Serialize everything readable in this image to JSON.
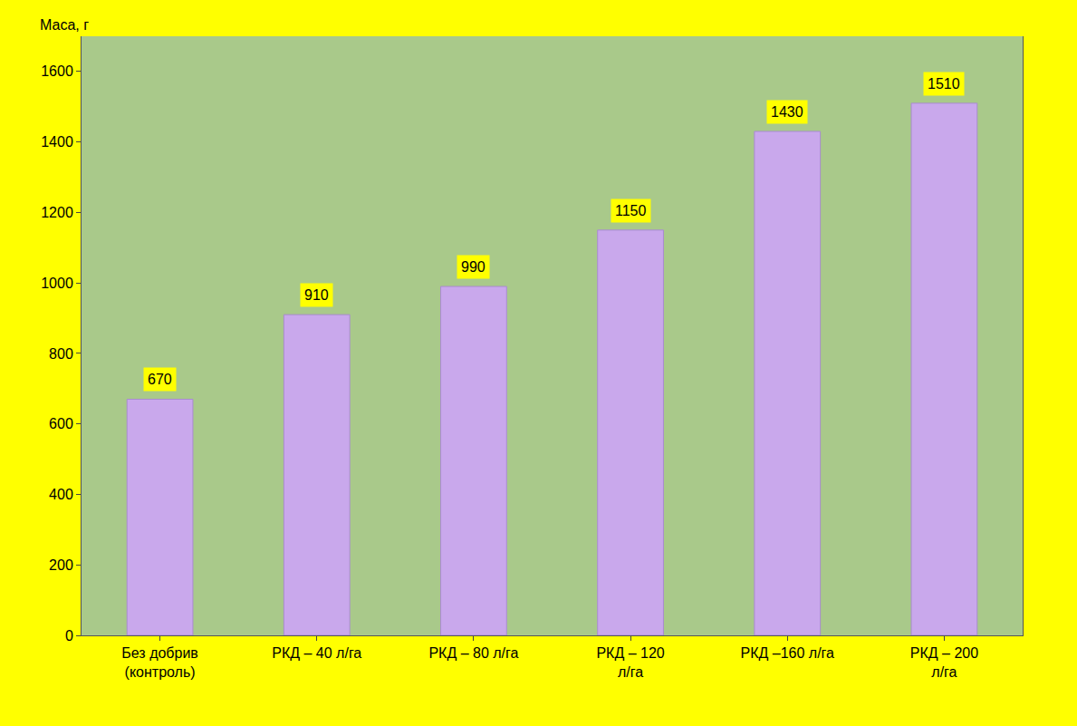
{
  "chart_data": {
    "type": "bar",
    "y_label": "Маса, г",
    "categories": [
      "Без добрив (контроль)",
      "РКД – 40 л/га",
      "РКД – 80 л/га",
      "РКД – 120 л/га",
      "РКД –160 л/га",
      "РКД – 200 л/га"
    ],
    "values": [
      670,
      910,
      990,
      1150,
      1430,
      1510
    ],
    "color": "#c9a8ec",
    "ylim": [
      0,
      1700
    ],
    "yticks": [
      0,
      200,
      400,
      600,
      800,
      1000,
      1200,
      1400,
      1600
    ],
    "grid": false,
    "data_labels": true
  }
}
